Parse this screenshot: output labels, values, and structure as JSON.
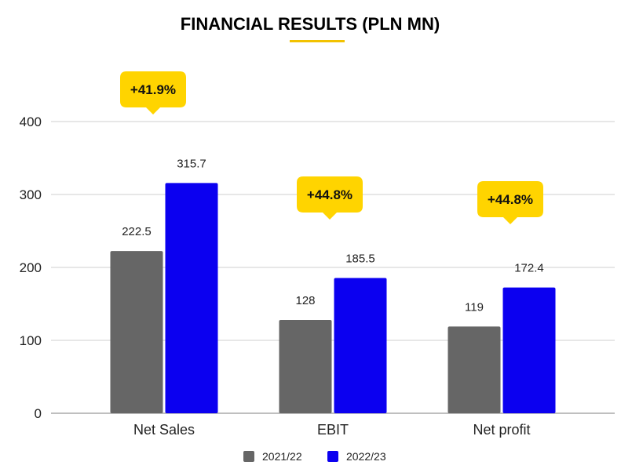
{
  "colors": {
    "series_2021_22": "#666666",
    "series_2022_23": "#0b00f0",
    "callout": "#ffd400",
    "title_underline": "#f2c200",
    "grid": "#cfcfcf",
    "axis": "#999999"
  },
  "chart_data": {
    "type": "bar",
    "title": "FINANCIAL RESULTS (PLN MN)",
    "categories": [
      "Net Sales",
      "EBIT",
      "Net profit"
    ],
    "series": [
      {
        "name": "2021/22",
        "values": [
          222.5,
          128,
          119
        ],
        "value_labels": [
          "222.5",
          "128",
          "119"
        ],
        "color": "#666666"
      },
      {
        "name": "2022/23",
        "values": [
          315.7,
          185.5,
          172.4
        ],
        "value_labels": [
          "315.7",
          "185.5",
          "172.4"
        ],
        "color": "#0b00f0"
      }
    ],
    "annotations": [
      "+41.9%",
      "+44.8%",
      "+44.8%"
    ],
    "ylim": [
      0,
      400
    ],
    "yticks": [
      0,
      100,
      200,
      300,
      400
    ],
    "ytick_labels": [
      "0",
      "100",
      "200",
      "300",
      "400"
    ],
    "grid": true,
    "legend": {
      "position": "bottom",
      "entries": [
        "2021/22",
        "2022/23"
      ]
    },
    "xlabel": "",
    "ylabel": ""
  }
}
